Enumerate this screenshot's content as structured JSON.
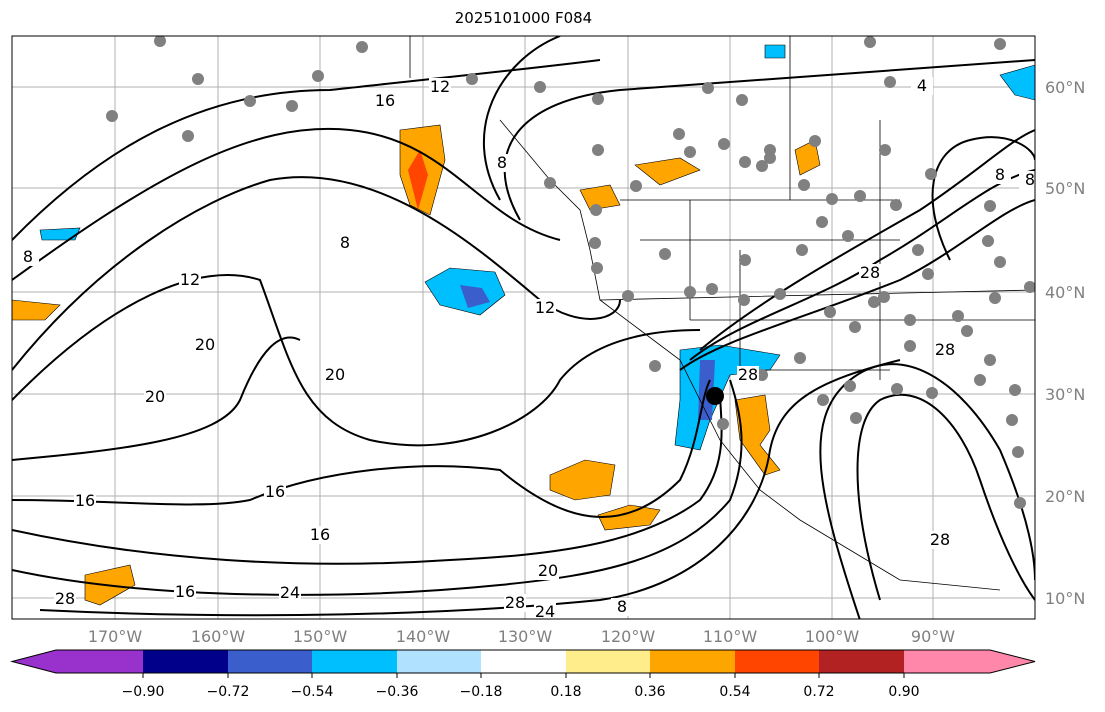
{
  "title": "2025101000 F084",
  "map": {
    "lon_labels": [
      "170°W",
      "160°W",
      "150°W",
      "140°W",
      "130°W",
      "120°W",
      "110°W",
      "100°W",
      "90°W"
    ],
    "lat_labels": [
      "60°N",
      "50°N",
      "40°N",
      "30°N",
      "20°N",
      "10°N"
    ],
    "contour_labels": [
      "16",
      "12",
      "8",
      "4",
      "8",
      "8",
      "12",
      "12",
      "20",
      "20",
      "20",
      "16",
      "16",
      "16",
      "28",
      "28",
      "24",
      "20",
      "24",
      "28",
      "28",
      "16",
      "8",
      "28",
      "8",
      "8",
      "28"
    ]
  },
  "colorbar": {
    "colors": [
      "#9932cc",
      "#00008b",
      "#3a5fcd",
      "#00bfff",
      "#b0e2ff",
      "#ffffff",
      "#ffec8b",
      "#ffa500",
      "#ff4500",
      "#b22222",
      "#ff88aa"
    ],
    "ticks": [
      "−0.90",
      "−0.72",
      "−0.54",
      "−0.36",
      "−0.18",
      "0.18",
      "0.36",
      "0.54",
      "0.72",
      "0.90"
    ]
  }
}
